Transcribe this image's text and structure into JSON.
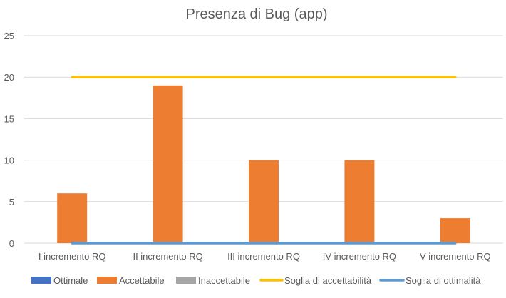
{
  "chart_data": {
    "type": "bar",
    "title": "Presenza di Bug (app)",
    "xlabel": "",
    "ylabel": "",
    "categories": [
      "I incremento RQ",
      "II incremento RQ",
      "III incremento RQ",
      "IV incremento RQ",
      "V incremento RQ"
    ],
    "ylim": [
      0,
      25
    ],
    "yticks": [
      0,
      5,
      10,
      15,
      20,
      25
    ],
    "grid": true,
    "legend_position": "bottom",
    "series": [
      {
        "name": "Ottimale",
        "kind": "bar",
        "color": "#4472C4",
        "values": [
          0,
          0,
          0,
          0,
          0
        ]
      },
      {
        "name": "Accettabile",
        "kind": "bar",
        "color": "#ED7D31",
        "values": [
          6,
          19,
          10,
          10,
          3
        ]
      },
      {
        "name": "Inaccettabile",
        "kind": "bar",
        "color": "#A5A5A5",
        "values": [
          0,
          0,
          0,
          0,
          0
        ]
      },
      {
        "name": "Soglia di accettabilità",
        "kind": "line",
        "color": "#FFC000",
        "values": [
          20,
          20,
          20,
          20,
          20
        ]
      },
      {
        "name": "Soglia di ottimalità",
        "kind": "line",
        "color": "#5B9BD5",
        "values": [
          0,
          0,
          0,
          0,
          0
        ]
      }
    ]
  }
}
